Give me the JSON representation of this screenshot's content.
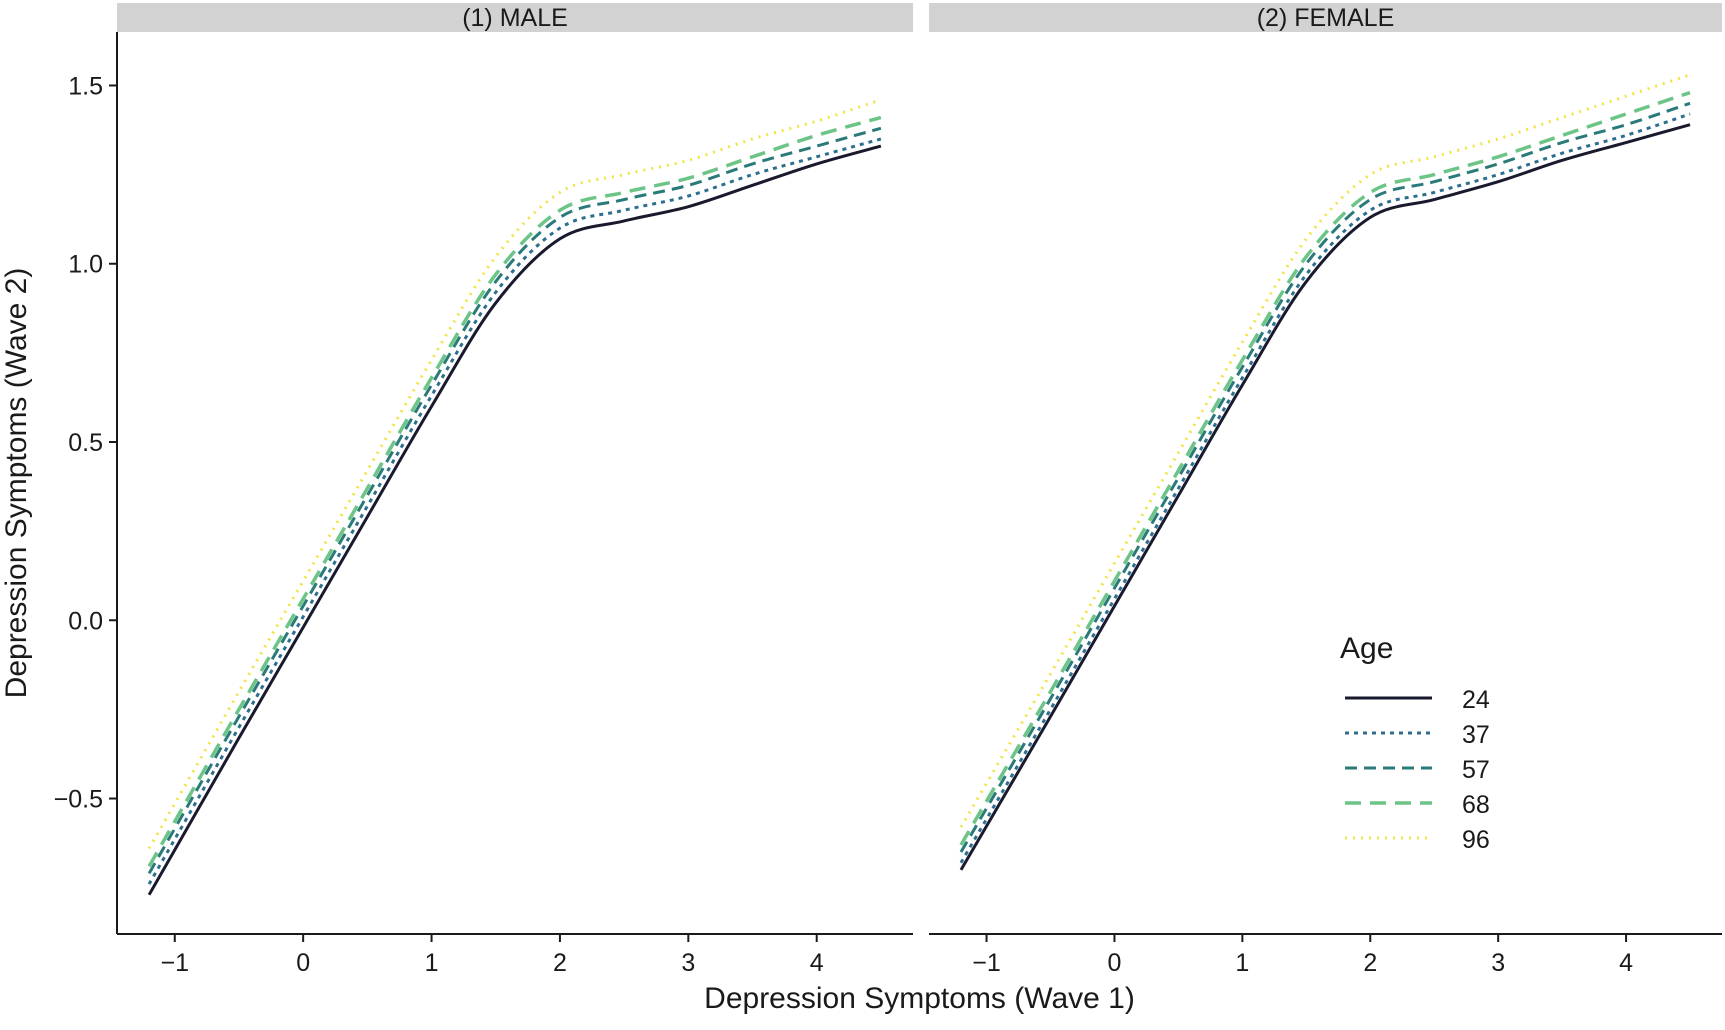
{
  "chart_data": {
    "type": "line",
    "xlabel": "Depression Symptoms (Wave 1)",
    "ylabel": "Depression Symptoms (Wave 2)",
    "xlim": [
      -1.45,
      4.75
    ],
    "ylim": [
      -0.88,
      1.65
    ],
    "xticks": [
      -1,
      0,
      1,
      2,
      3,
      4
    ],
    "xtick_labels": [
      "−1",
      "0",
      "1",
      "2",
      "3",
      "4"
    ],
    "yticks": [
      -0.5,
      0.0,
      0.5,
      1.0,
      1.5
    ],
    "ytick_labels": [
      "−0.5",
      "0.0",
      "0.5",
      "1.0",
      "1.5"
    ],
    "x": [
      -1.2,
      -0.5,
      0.0,
      0.5,
      1.0,
      1.5,
      2.0,
      2.5,
      3.0,
      3.5,
      4.0,
      4.5
    ],
    "legend": {
      "title": "Age",
      "position": "bottom-right of second panel"
    },
    "grid": false,
    "panels": [
      {
        "title": "(1) MALE",
        "series": [
          {
            "name": "24",
            "color": "#1a1a2e",
            "dash": "solid",
            "values": [
              -0.77,
              -0.33,
              -0.02,
              0.29,
              0.6,
              0.89,
              1.07,
              1.12,
              1.16,
              1.22,
              1.28,
              1.33
            ]
          },
          {
            "name": "37",
            "color": "#2c6e8f",
            "dash": "dotted",
            "values": [
              -0.74,
              -0.3,
              0.01,
              0.32,
              0.63,
              0.92,
              1.1,
              1.15,
              1.19,
              1.25,
              1.3,
              1.35
            ]
          },
          {
            "name": "57",
            "color": "#2a7a7a",
            "dash": "dashed",
            "values": [
              -0.71,
              -0.27,
              0.04,
              0.35,
              0.66,
              0.95,
              1.13,
              1.18,
              1.22,
              1.28,
              1.33,
              1.38
            ]
          },
          {
            "name": "68",
            "color": "#6cc486",
            "dash": "longdash",
            "values": [
              -0.69,
              -0.25,
              0.06,
              0.37,
              0.68,
              0.97,
              1.15,
              1.2,
              1.24,
              1.3,
              1.36,
              1.41
            ]
          },
          {
            "name": "96",
            "color": "#f0e442",
            "dash": "finedot",
            "values": [
              -0.64,
              -0.2,
              0.11,
              0.42,
              0.73,
              1.02,
              1.2,
              1.25,
              1.29,
              1.35,
              1.4,
              1.46
            ]
          }
        ]
      },
      {
        "title": "(2) FEMALE",
        "series": [
          {
            "name": "24",
            "color": "#1a1a2e",
            "dash": "solid",
            "values": [
              -0.7,
              -0.27,
              0.04,
              0.35,
              0.66,
              0.95,
              1.13,
              1.18,
              1.23,
              1.29,
              1.34,
              1.39
            ]
          },
          {
            "name": "37",
            "color": "#2c6e8f",
            "dash": "dotted",
            "values": [
              -0.68,
              -0.25,
              0.06,
              0.37,
              0.68,
              0.97,
              1.15,
              1.2,
              1.25,
              1.31,
              1.36,
              1.42
            ]
          },
          {
            "name": "57",
            "color": "#2a7a7a",
            "dash": "dashed",
            "values": [
              -0.65,
              -0.22,
              0.09,
              0.4,
              0.71,
              1.0,
              1.18,
              1.23,
              1.28,
              1.34,
              1.39,
              1.45
            ]
          },
          {
            "name": "68",
            "color": "#6cc486",
            "dash": "longdash",
            "values": [
              -0.63,
              -0.2,
              0.11,
              0.42,
              0.73,
              1.02,
              1.2,
              1.25,
              1.3,
              1.36,
              1.42,
              1.48
            ]
          },
          {
            "name": "96",
            "color": "#f0e442",
            "dash": "finedot",
            "values": [
              -0.58,
              -0.15,
              0.16,
              0.47,
              0.78,
              1.07,
              1.25,
              1.3,
              1.35,
              1.41,
              1.47,
              1.53
            ]
          }
        ]
      }
    ]
  }
}
